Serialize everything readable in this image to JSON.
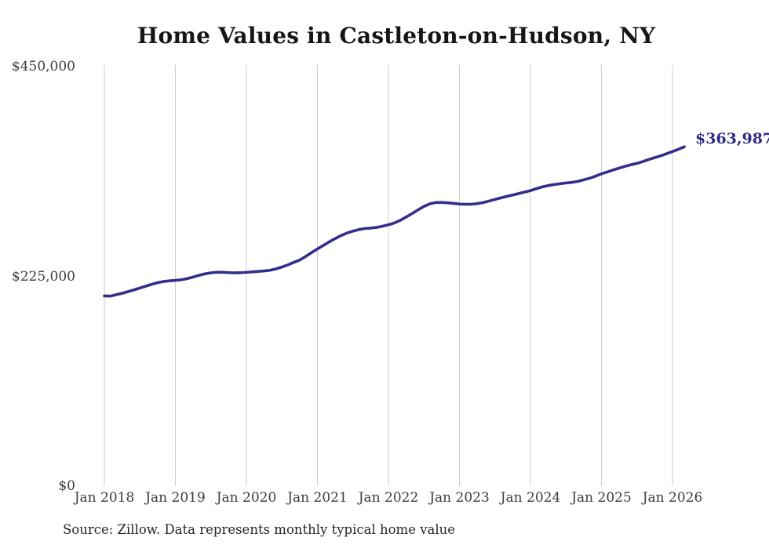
{
  "page": {
    "source_note": "Source: Zillow. Data represents monthly typical home value"
  },
  "colors": {
    "background": "#ffffff",
    "title_text": "#161616",
    "axis_text": "#3d3d3d",
    "source_text": "#262626",
    "gridline": "#cccccc",
    "line": "#332e8c",
    "end_label_text": "#2e2a87"
  },
  "chart_data": {
    "type": "line",
    "title": "Home Values in Castleton-on-Hudson, NY",
    "xlabel": "",
    "ylabel": "",
    "ylim": [
      0,
      450000
    ],
    "grid": "vertical-only",
    "legend": "none",
    "x_tick_labels": [
      "Jan 2018",
      "Jan 2019",
      "Jan 2020",
      "Jan 2021",
      "Jan 2022",
      "Jan 2023",
      "Jan 2024",
      "Jan 2025",
      "Jan 2026"
    ],
    "y_ticks": [
      {
        "label": "$450,000",
        "value": 450000
      },
      {
        "label": "$225,000",
        "value": 225000
      },
      {
        "label": "$0",
        "value": 0
      }
    ],
    "x_start": "2018-01",
    "x_end": "2026-03",
    "x_frequency": "monthly",
    "end_point_label": "$363,987",
    "series": [
      {
        "name": "Typical home value (USD)",
        "values": [
          204000,
          203800,
          205300,
          206800,
          208600,
          210500,
          212500,
          214500,
          216500,
          218200,
          219500,
          220200,
          220700,
          221300,
          222600,
          224300,
          226100,
          227700,
          228800,
          229400,
          229400,
          229000,
          228700,
          228900,
          229300,
          229800,
          230300,
          230800,
          231500,
          233000,
          235000,
          237300,
          240000,
          242500,
          246300,
          250400,
          254400,
          258200,
          262000,
          265500,
          268800,
          271500,
          273500,
          275200,
          276300,
          276800,
          277500,
          278800,
          280300,
          282300,
          285100,
          288700,
          292400,
          296300,
          300000,
          302800,
          304200,
          304300,
          303900,
          303300,
          302600,
          302300,
          302400,
          303000,
          304200,
          305800,
          307500,
          309200,
          310800,
          312300,
          313800,
          315400,
          317000,
          319100,
          321000,
          322400,
          323500,
          324400,
          325200,
          325800,
          326900,
          328600,
          330300,
          332500,
          335000,
          337000,
          339200,
          341200,
          343100,
          344800,
          346200,
          348200,
          350400,
          352400,
          354300,
          356600,
          358900,
          361300,
          363987
        ]
      }
    ]
  }
}
